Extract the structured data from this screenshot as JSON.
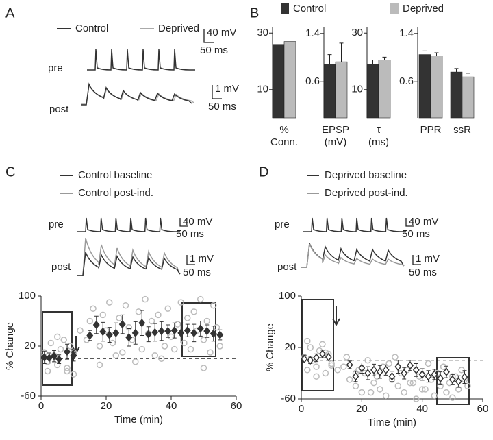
{
  "panels": [
    "A",
    "B",
    "C",
    "D"
  ],
  "panel_a": {
    "legend": [
      "Control",
      "Deprived"
    ],
    "colors": [
      "#333333",
      "#aaaaaa"
    ],
    "labels": [
      "pre",
      "post"
    ],
    "scale_labels": [
      "40 mV",
      "50 ms",
      "1 mV",
      "50 ms"
    ]
  },
  "chart_data": [
    {
      "type": "bar",
      "categories": [
        "% Conn."
      ],
      "series": [
        {
          "name": "Control",
          "color": "#333333",
          "values": [
            26
          ]
        },
        {
          "name": "Deprived",
          "color": "#bbbbbb",
          "values": [
            27
          ]
        }
      ],
      "ylim": [
        0,
        32
      ],
      "yticks": [
        10,
        30
      ]
    },
    {
      "type": "bar",
      "categories": [
        "EPSP (mV)"
      ],
      "series": [
        {
          "color": "#333333",
          "values": [
            0.89
          ],
          "errors": [
            0.16
          ]
        },
        {
          "color": "#bbbbbb",
          "values": [
            0.93
          ],
          "errors": [
            0.31
          ]
        }
      ],
      "ylim": [
        0,
        1.5
      ],
      "yticks": [
        0.6,
        1.4
      ]
    },
    {
      "type": "bar",
      "categories": [
        "τ (ms)"
      ],
      "series": [
        {
          "color": "#333333",
          "values": [
            19
          ],
          "errors": [
            1.5
          ]
        },
        {
          "color": "#bbbbbb",
          "values": [
            20.5
          ],
          "errors": [
            1
          ]
        }
      ],
      "ylim": [
        0,
        32
      ],
      "yticks": [
        10,
        30
      ]
    },
    {
      "type": "bar",
      "categories": [
        "PPR",
        "ssR"
      ],
      "series": [
        {
          "color": "#333333",
          "values": [
            1.05,
            0.76
          ],
          "errors": [
            0.06,
            0.06
          ]
        },
        {
          "color": "#bbbbbb",
          "values": [
            1.03,
            0.68
          ],
          "errors": [
            0.05,
            0.06
          ]
        }
      ],
      "ylim": [
        0,
        1.5
      ],
      "yticks": [
        0.6,
        1.4
      ]
    },
    {
      "type": "scatter",
      "xlabel": "Time (min)",
      "ylabel": "% Change",
      "xlim": [
        0,
        60
      ],
      "ylim": [
        -60,
        100
      ],
      "xticks": [
        0,
        20,
        40,
        60
      ],
      "yticks": [
        -60,
        20,
        100
      ],
      "hline": 0,
      "traces": {
        "legend": [
          "Control baseline",
          "Control post-ind."
        ],
        "colors": [
          "#333333",
          "#999999"
        ],
        "labels": [
          "pre",
          "post"
        ],
        "scale_labels": [
          "40 mV",
          "50 ms",
          "1 mV",
          "50 ms"
        ]
      },
      "points": {
        "color": "#bbbbbb",
        "x": [
          1,
          2,
          3,
          4,
          5,
          6,
          7,
          8,
          9,
          10,
          2,
          5,
          8,
          10,
          14,
          15,
          16,
          18,
          19,
          20,
          21,
          22,
          24,
          25,
          26,
          27,
          28,
          30,
          31,
          32,
          33,
          34,
          35,
          36,
          38,
          39,
          40,
          42,
          43,
          44,
          45,
          46,
          47,
          48,
          49,
          50,
          51,
          52,
          53,
          54,
          55,
          18,
          23,
          29,
          37,
          41,
          50,
          12
        ],
        "y": [
          10,
          -20,
          25,
          5,
          -10,
          15,
          30,
          -15,
          20,
          -25,
          -5,
          35,
          -20,
          10,
          30,
          60,
          80,
          20,
          70,
          45,
          90,
          25,
          65,
          10,
          85,
          50,
          30,
          75,
          15,
          95,
          40,
          60,
          5,
          70,
          20,
          80,
          35,
          55,
          90,
          25,
          65,
          15,
          75,
          45,
          95,
          30,
          60,
          10,
          85,
          50,
          20,
          -10,
          5,
          -5,
          0,
          15,
          -15,
          45
        ]
      },
      "means": {
        "color": "#333333",
        "filled": true,
        "x": [
          1,
          2.5,
          4,
          5.5,
          8,
          10,
          15,
          17,
          19,
          21,
          23,
          25,
          27,
          29,
          31,
          33,
          35,
          37,
          39,
          41,
          43,
          45,
          47,
          49,
          51,
          53,
          55
        ],
        "y": [
          2,
          1,
          4,
          -1,
          11,
          5,
          37,
          54,
          43,
          38,
          41,
          55,
          34,
          41,
          57,
          39,
          42,
          44,
          44,
          45,
          41,
          45,
          41,
          48,
          44,
          40,
          38
        ],
        "errors": [
          10,
          8,
          9,
          7,
          12,
          9,
          8,
          14,
          15,
          12,
          16,
          15,
          14,
          18,
          20,
          12,
          14,
          15,
          10,
          12,
          16,
          10,
          14,
          12,
          10,
          12,
          8
        ]
      }
    },
    {
      "type": "scatter",
      "xlabel": "Time (min)",
      "ylabel": "% Change",
      "xlim": [
        0,
        60
      ],
      "ylim": [
        -60,
        100
      ],
      "xticks": [
        0,
        20,
        40,
        60
      ],
      "yticks": [
        -60,
        20,
        100
      ],
      "hline": 0,
      "traces": {
        "legend": [
          "Deprived baseline",
          "Deprived post-ind."
        ],
        "colors": [
          "#333333",
          "#999999"
        ],
        "labels": [
          "pre",
          "post"
        ],
        "scale_labels": [
          "40 mV",
          "50 ms",
          "1 mV",
          "50 ms"
        ]
      },
      "points": {
        "color": "#bbbbbb",
        "x": [
          1,
          2,
          3,
          4,
          5,
          6,
          7,
          8,
          9,
          10,
          2,
          5,
          8,
          10,
          14,
          15,
          16,
          18,
          19,
          20,
          21,
          22,
          24,
          25,
          26,
          27,
          28,
          30,
          31,
          32,
          33,
          34,
          35,
          36,
          38,
          39,
          40,
          42,
          43,
          44,
          45,
          46,
          47,
          48,
          49,
          50,
          51,
          52,
          53,
          54,
          55,
          18,
          23,
          29,
          37,
          41,
          50,
          12
        ],
        "y": [
          5,
          -15,
          20,
          0,
          -10,
          15,
          25,
          -20,
          10,
          -5,
          30,
          -25,
          12,
          -8,
          -10,
          5,
          -30,
          -40,
          -15,
          -50,
          -20,
          0,
          -35,
          -25,
          -45,
          -10,
          -55,
          -30,
          5,
          -40,
          -20,
          -50,
          -15,
          -35,
          -60,
          -25,
          -45,
          -5,
          -30,
          -55,
          -20,
          -40,
          -10,
          -50,
          -35,
          -58,
          -25,
          -45,
          -15,
          -30,
          -40,
          -20,
          -50,
          -5,
          -35,
          -45,
          -25,
          -15
        ]
      },
      "means": {
        "color": "#333333",
        "filled": false,
        "x": [
          1,
          3,
          5,
          7,
          9,
          16,
          18,
          20,
          22,
          24,
          26,
          28,
          30,
          32,
          34,
          36,
          38,
          40,
          42,
          44,
          46,
          48,
          50,
          52,
          54
        ],
        "y": [
          2,
          0,
          4,
          10,
          5,
          -7,
          -25,
          -12,
          -20,
          -15,
          -18,
          -15,
          -25,
          -10,
          -20,
          -8,
          -15,
          -22,
          -25,
          -22,
          -28,
          -18,
          -30,
          -33,
          -26
        ],
        "errors": [
          6,
          5,
          6,
          6,
          5,
          6,
          8,
          8,
          10,
          9,
          10,
          8,
          8,
          10,
          9,
          8,
          10,
          9,
          9,
          8,
          10,
          9,
          8,
          9,
          10
        ]
      }
    }
  ]
}
